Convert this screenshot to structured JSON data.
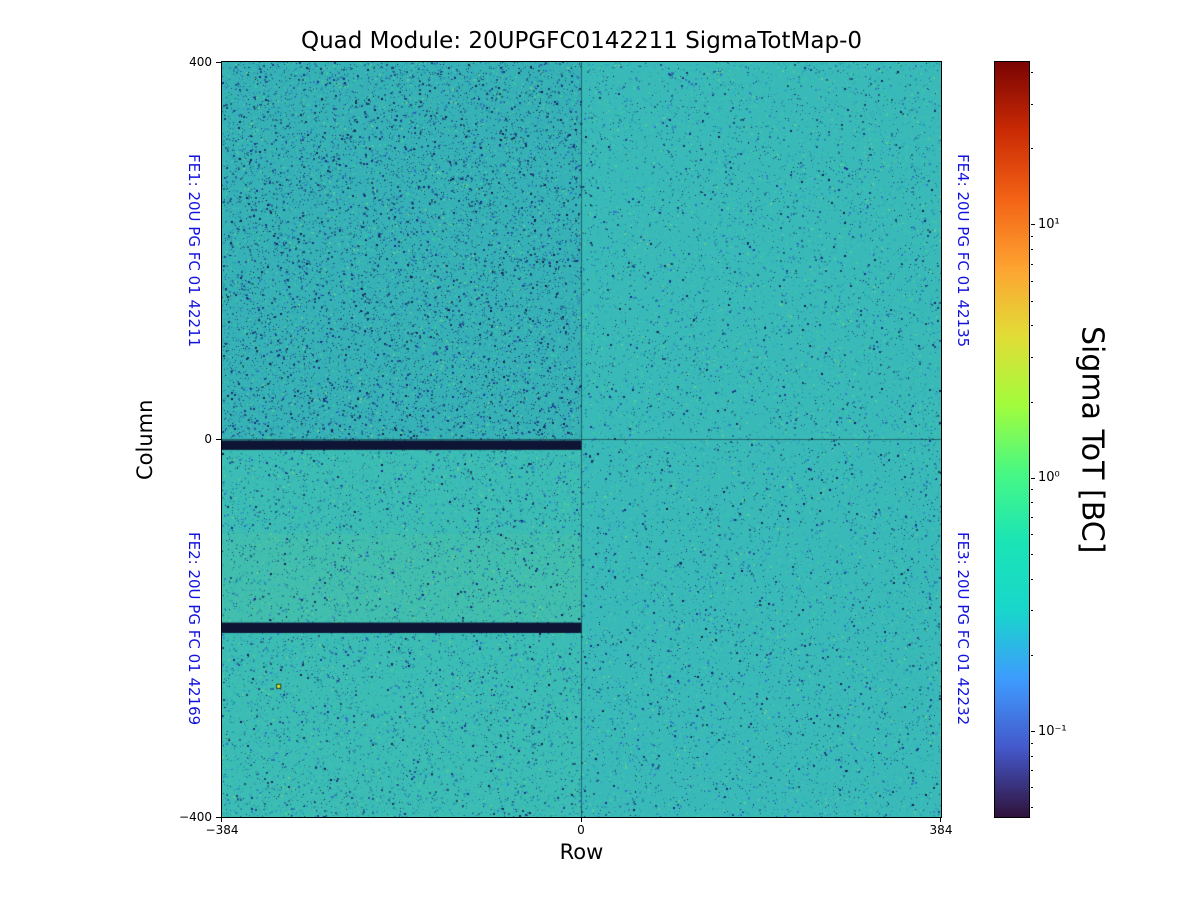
{
  "figure": {
    "background": "#ffffff"
  },
  "chart_data": {
    "type": "heatmap",
    "title": "Quad Module: 20UPGFC0142211 SigmaTotMap-0",
    "xlabel": "Row",
    "ylabel": "Column",
    "xlim": [
      -384,
      384
    ],
    "ylim": [
      -400,
      400
    ],
    "x_ticks": [
      -384,
      0,
      384
    ],
    "x_tick_labels": [
      "−384",
      "0",
      "384"
    ],
    "y_ticks": [
      400,
      0,
      -400
    ],
    "y_tick_labels": [
      "400",
      "0",
      "−400"
    ],
    "legend": "none",
    "grid": "quadrant separator lines at x=0 and y=0",
    "colorbar": {
      "label": "Sigma ToT [BC]",
      "scale": "log",
      "vmin": 0.046,
      "vmax": 44,
      "ticks": [
        {
          "value": 10,
          "label": "10¹"
        },
        {
          "value": 1,
          "label": "10⁰"
        },
        {
          "value": 0.1,
          "label": "10⁻¹"
        }
      ],
      "gradient_top_to_bottom": [
        "#7a0403",
        "#ca2a04",
        "#f36315",
        "#fea331",
        "#e1dd37",
        "#a2fc3c",
        "#46f884",
        "#1ae4b6",
        "#18d6cb",
        "#3e9bfe",
        "#4458cb",
        "#30123b"
      ]
    },
    "quadrants": [
      {
        "name": "FE1",
        "label": "FE1: 20U PG FC 01 42211",
        "position": "top-left"
      },
      {
        "name": "FE2",
        "label": "FE2: 20U PG FC 01 42169",
        "position": "bottom-left"
      },
      {
        "name": "FE3",
        "label": "FE3: 20U PG FC 01 42232",
        "position": "bottom-right"
      },
      {
        "name": "FE4",
        "label": "FE4: 20U PG FC 01 42135",
        "position": "top-right"
      }
    ],
    "map": {
      "description": "Per-pixel sigma ToT noise map; most pixels ≈ 0.3–0.5 BC (teal/cyan) with random speckle outliers; FE1 quadrant slightly denser dark-blue speckle; FE2 region slightly greener",
      "typical_value_bc": 0.35,
      "base_color": "#39bab8",
      "noise_colors": [
        "#2fa9b7",
        "#4cc4b0",
        "#27879e",
        "#2f6fd0",
        "#1b2a8a",
        "#35cf9b",
        "#63cf8e",
        "#12194f",
        "#2fb9c9",
        "#1f9fb0"
      ],
      "dense_navy_colors": [
        "#1b2a8a",
        "#16326e",
        "#101b4a"
      ],
      "speckle_density": 0.09,
      "dead_bands": [
        {
          "x": [
            -384,
            0
          ],
          "y": [
            -1,
            -11
          ],
          "value": 0,
          "color": "#0e1433"
        },
        {
          "x": [
            -384,
            0
          ],
          "y": [
            -194,
            -205
          ],
          "value": 0,
          "color": "#0e1433"
        }
      ],
      "hot_pixel": {
        "x": -324,
        "y": -261,
        "color": "#d6ef3e"
      },
      "fe_label_color": "#1212e0",
      "separator_color": "rgba(15,45,55,0.6)"
    }
  }
}
